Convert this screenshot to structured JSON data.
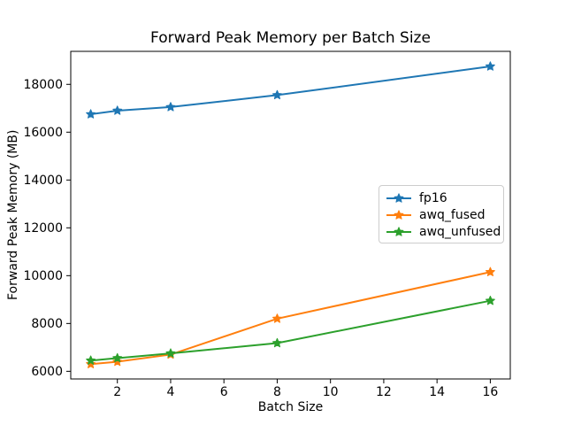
{
  "chart_data": {
    "type": "line",
    "title": "Forward Peak Memory per Batch Size",
    "xlabel": "Batch Size",
    "ylabel": "Forward Peak Memory (MB)",
    "x": [
      1,
      2,
      4,
      8,
      16
    ],
    "series": [
      {
        "name": "fp16",
        "color": "#1f77b4",
        "marker": "star",
        "values": [
          16750,
          16900,
          17050,
          17550,
          18750
        ]
      },
      {
        "name": "awq_fused",
        "color": "#ff7f0e",
        "marker": "star",
        "values": [
          6300,
          6400,
          6700,
          8200,
          10150
        ]
      },
      {
        "name": "awq_unfused",
        "color": "#2ca02c",
        "marker": "star",
        "values": [
          6450,
          6550,
          6750,
          7180,
          8950
        ]
      }
    ],
    "xticks": [
      2,
      4,
      6,
      8,
      10,
      12,
      14,
      16
    ],
    "yticks": [
      6000,
      8000,
      10000,
      12000,
      14000,
      16000,
      18000
    ],
    "xlim": [
      0.25,
      16.75
    ],
    "ylim": [
      5680,
      19380
    ],
    "grid": false,
    "legend_position": "center right"
  },
  "style": {
    "background": "#ffffff",
    "axis_color": "#000000",
    "text_color": "#000000",
    "legend_border": "#cccccc"
  }
}
